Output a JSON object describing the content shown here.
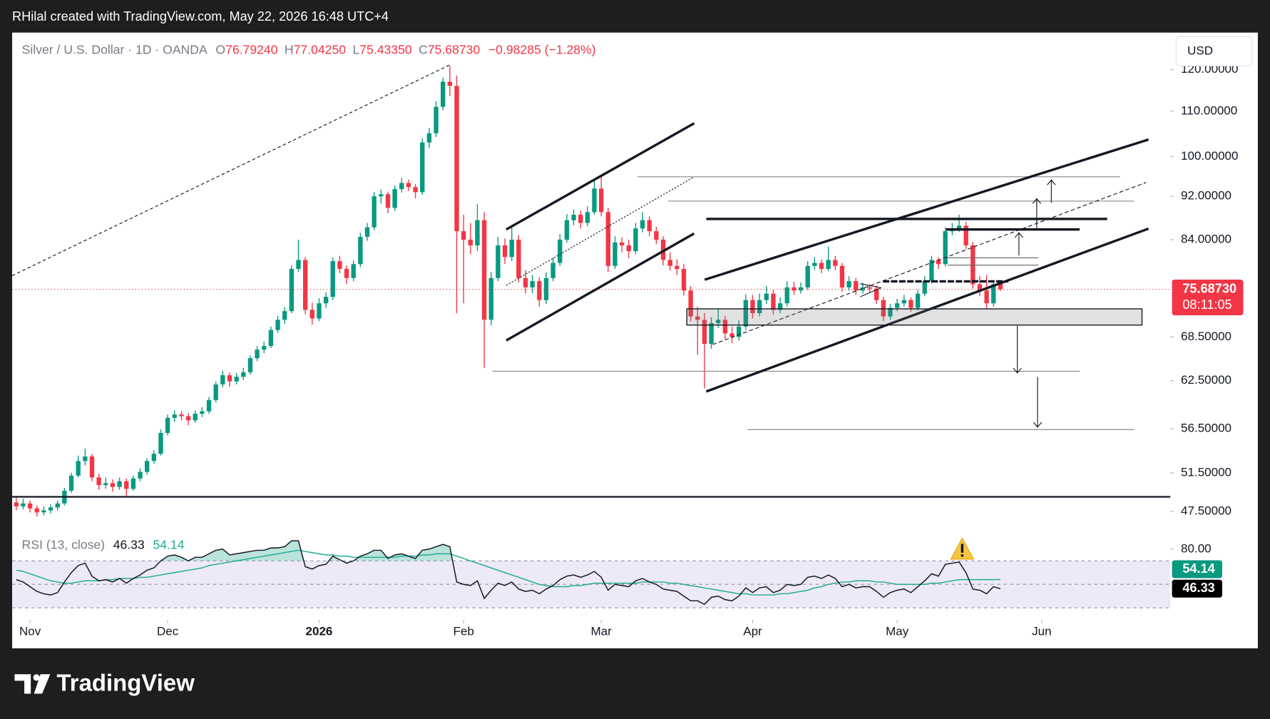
{
  "header": {
    "credit": "RHilal created with TradingView.com, May 22, 2026 16:48 UTC+4"
  },
  "footer": {
    "brand": "TradingView"
  },
  "chart_data": {
    "type": "candlestick",
    "symbol": "Silver / U.S. Dollar · 1D · OANDA",
    "legend": [
      {
        "key": "O",
        "value": "76.79240"
      },
      {
        "key": "H",
        "value": "77.04250"
      },
      {
        "key": "L",
        "value": "75.43350"
      },
      {
        "key": "C",
        "value": "75.68730"
      }
    ],
    "change": "−0.98285 (−1.28%)",
    "currency": "USD",
    "colors": {
      "up": "#089981",
      "down": "#f23645"
    },
    "log_scale": true,
    "ylim": [
      45.6,
      129.7
    ],
    "yticks": [
      {
        "value": 120,
        "label": "120.00000"
      },
      {
        "value": 110,
        "label": "110.00000"
      },
      {
        "value": 100,
        "label": "100.00000"
      },
      {
        "value": 92,
        "label": "92.00000"
      },
      {
        "value": 84,
        "label": "84.00000"
      },
      {
        "value": 68.5,
        "label": "68.50000"
      },
      {
        "value": 62.5,
        "label": "62.50000"
      },
      {
        "value": 56.5,
        "label": "56.50000"
      },
      {
        "value": 51.5,
        "label": "51.50000"
      },
      {
        "value": 47.5,
        "label": "47.50000"
      }
    ],
    "xlim": [
      -0.6,
      167.7
    ],
    "xticks": [
      {
        "value": 2,
        "label": "Nov"
      },
      {
        "value": 22,
        "label": "Dec"
      },
      {
        "value": 44,
        "label": "2026"
      },
      {
        "value": 65,
        "label": "Feb"
      },
      {
        "value": 85,
        "label": "Mar"
      },
      {
        "value": 107,
        "label": "Apr"
      },
      {
        "value": 128,
        "label": "May"
      },
      {
        "value": 149,
        "label": "Jun"
      }
    ],
    "last_price": {
      "value": 75.6873,
      "label": "75.68730",
      "countdown": "08:11:05"
    },
    "ohlc": [
      [
        48.4,
        48.9,
        47.6,
        48.0
      ],
      [
        48.0,
        48.8,
        47.7,
        48.3
      ],
      [
        48.3,
        48.6,
        47.4,
        47.8
      ],
      [
        47.8,
        48.1,
        47.0,
        47.4
      ],
      [
        47.4,
        48.0,
        47.1,
        47.6
      ],
      [
        47.6,
        48.2,
        47.3,
        47.9
      ],
      [
        47.9,
        48.6,
        47.6,
        48.3
      ],
      [
        48.3,
        49.9,
        48.1,
        49.6
      ],
      [
        49.6,
        51.5,
        49.4,
        51.2
      ],
      [
        51.2,
        53.4,
        51.0,
        52.8
      ],
      [
        52.8,
        54.2,
        52.3,
        53.3
      ],
      [
        53.3,
        53.6,
        50.6,
        51.0
      ],
      [
        51.0,
        51.4,
        49.7,
        50.2
      ],
      [
        50.2,
        51.0,
        49.8,
        50.4
      ],
      [
        50.4,
        50.8,
        49.5,
        50.0
      ],
      [
        50.0,
        51.0,
        49.7,
        50.6
      ],
      [
        50.6,
        50.9,
        49.0,
        49.8
      ],
      [
        49.8,
        51.2,
        49.6,
        50.9
      ],
      [
        50.9,
        52.0,
        50.6,
        51.6
      ],
      [
        51.6,
        53.1,
        51.3,
        52.8
      ],
      [
        52.8,
        54.0,
        52.5,
        53.6
      ],
      [
        53.6,
        56.4,
        53.4,
        56.0
      ],
      [
        56.0,
        58.2,
        55.7,
        57.8
      ],
      [
        57.8,
        58.7,
        57.3,
        58.2
      ],
      [
        58.2,
        58.6,
        57.5,
        58.0
      ],
      [
        58.0,
        58.4,
        56.9,
        57.5
      ],
      [
        57.5,
        58.7,
        57.2,
        58.3
      ],
      [
        58.3,
        59.1,
        57.9,
        58.6
      ],
      [
        58.6,
        60.4,
        58.3,
        60.0
      ],
      [
        60.0,
        62.4,
        59.7,
        62.0
      ],
      [
        62.0,
        63.8,
        61.6,
        63.2
      ],
      [
        63.2,
        63.6,
        61.7,
        62.4
      ],
      [
        62.4,
        63.5,
        62.0,
        63.0
      ],
      [
        63.0,
        64.2,
        62.6,
        63.6
      ],
      [
        63.6,
        65.9,
        63.3,
        65.5
      ],
      [
        65.5,
        67.2,
        65.1,
        66.7
      ],
      [
        66.7,
        67.8,
        66.2,
        67.2
      ],
      [
        67.2,
        70.0,
        66.9,
        69.5
      ],
      [
        69.5,
        71.6,
        69.1,
        71.0
      ],
      [
        71.0,
        72.9,
        70.4,
        72.3
      ],
      [
        72.3,
        79.6,
        72.0,
        79.0
      ],
      [
        79.0,
        84.0,
        78.5,
        80.5
      ],
      [
        80.5,
        81.0,
        71.8,
        72.5
      ],
      [
        72.5,
        73.6,
        70.3,
        71.2
      ],
      [
        71.2,
        74.3,
        70.8,
        73.5
      ],
      [
        73.5,
        75.2,
        72.8,
        74.5
      ],
      [
        74.5,
        80.9,
        74.0,
        80.3
      ],
      [
        80.3,
        81.2,
        78.3,
        79.0
      ],
      [
        79.0,
        79.6,
        76.5,
        77.5
      ],
      [
        77.5,
        80.4,
        77.0,
        79.8
      ],
      [
        79.8,
        85.2,
        79.3,
        84.5
      ],
      [
        84.5,
        87.0,
        83.8,
        86.2
      ],
      [
        86.2,
        92.8,
        85.7,
        92.0
      ],
      [
        92.0,
        93.3,
        90.6,
        92.4
      ],
      [
        92.4,
        92.9,
        88.8,
        89.8
      ],
      [
        89.8,
        94.1,
        89.2,
        93.4
      ],
      [
        93.4,
        95.6,
        92.7,
        94.6
      ],
      [
        94.6,
        95.3,
        93.0,
        93.8
      ],
      [
        93.8,
        94.4,
        91.6,
        92.8
      ],
      [
        92.8,
        103.9,
        92.3,
        103.0
      ],
      [
        103.0,
        106.2,
        101.8,
        105.0
      ],
      [
        105.0,
        112.3,
        104.2,
        111.0
      ],
      [
        111.0,
        118.0,
        110.2,
        117.0
      ],
      [
        117.0,
        121.0,
        113.5,
        116.0
      ],
      [
        116.0,
        118.5,
        72.0,
        85.5
      ],
      [
        85.5,
        88.5,
        73.5,
        84.0
      ],
      [
        84.0,
        87.0,
        81.5,
        83.0
      ],
      [
        83.0,
        90.5,
        82.0,
        87.5
      ],
      [
        87.5,
        89.0,
        64.2,
        71.0
      ],
      [
        71.0,
        78.5,
        70.2,
        77.5
      ],
      [
        77.5,
        84.5,
        77.0,
        83.0
      ],
      [
        83.0,
        84.2,
        79.8,
        81.0
      ],
      [
        81.0,
        86.2,
        80.3,
        84.0
      ],
      [
        84.0,
        84.8,
        76.8,
        77.5
      ],
      [
        77.5,
        78.8,
        75.0,
        76.0
      ],
      [
        76.0,
        78.0,
        75.1,
        77.0
      ],
      [
        77.0,
        77.6,
        73.0,
        74.0
      ],
      [
        74.0,
        78.4,
        73.4,
        77.5
      ],
      [
        77.5,
        80.9,
        77.0,
        80.0
      ],
      [
        80.0,
        85.0,
        79.5,
        84.0
      ],
      [
        84.0,
        88.6,
        83.5,
        87.5
      ],
      [
        87.5,
        89.5,
        86.6,
        88.5
      ],
      [
        88.5,
        89.3,
        86.0,
        87.0
      ],
      [
        87.0,
        90.1,
        86.4,
        89.0
      ],
      [
        89.0,
        95.5,
        88.5,
        93.5
      ],
      [
        93.5,
        95.8,
        88.2,
        89.0
      ],
      [
        89.0,
        89.8,
        78.5,
        79.5
      ],
      [
        79.5,
        84.6,
        79.0,
        83.5
      ],
      [
        83.5,
        84.4,
        81.8,
        83.0
      ],
      [
        83.0,
        84.0,
        80.8,
        82.0
      ],
      [
        82.0,
        87.0,
        81.5,
        86.0
      ],
      [
        86.0,
        89.0,
        85.3,
        87.5
      ],
      [
        87.5,
        88.2,
        84.6,
        85.5
      ],
      [
        85.5,
        86.3,
        83.2,
        84.0
      ],
      [
        84.0,
        84.6,
        79.6,
        80.5
      ],
      [
        80.5,
        81.8,
        78.7,
        79.5
      ],
      [
        79.5,
        80.6,
        78.0,
        79.0
      ],
      [
        79.0,
        79.8,
        74.7,
        75.5
      ],
      [
        75.5,
        76.2,
        70.8,
        71.5
      ],
      [
        71.5,
        73.0,
        66.0,
        71.0
      ],
      [
        71.0,
        72.0,
        61.5,
        67.5
      ],
      [
        67.5,
        71.4,
        66.8,
        70.5
      ],
      [
        70.5,
        72.6,
        69.8,
        71.0
      ],
      [
        71.0,
        71.6,
        68.2,
        69.0
      ],
      [
        69.0,
        70.0,
        67.6,
        68.5
      ],
      [
        68.5,
        70.9,
        68.0,
        70.0
      ],
      [
        70.0,
        74.9,
        69.5,
        74.0
      ],
      [
        74.0,
        74.8,
        71.2,
        72.0
      ],
      [
        72.0,
        75.0,
        71.5,
        74.0
      ],
      [
        74.0,
        76.2,
        73.4,
        75.0
      ],
      [
        75.0,
        75.6,
        71.8,
        72.5
      ],
      [
        72.5,
        74.4,
        72.0,
        73.5
      ],
      [
        73.5,
        77.0,
        73.0,
        76.0
      ],
      [
        76.0,
        76.9,
        74.8,
        75.5
      ],
      [
        75.5,
        76.8,
        75.0,
        76.0
      ],
      [
        76.0,
        80.3,
        75.6,
        79.5
      ],
      [
        79.5,
        81.0,
        78.8,
        80.0
      ],
      [
        80.0,
        80.6,
        78.3,
        79.0
      ],
      [
        79.0,
        82.8,
        78.6,
        80.5
      ],
      [
        80.5,
        81.2,
        78.8,
        79.5
      ],
      [
        79.5,
        80.0,
        75.3,
        76.0
      ],
      [
        76.0,
        77.8,
        75.5,
        77.0
      ],
      [
        77.0,
        77.5,
        74.8,
        75.5
      ],
      [
        75.5,
        76.8,
        75.0,
        76.0
      ],
      [
        76.0,
        76.5,
        75.2,
        75.8
      ],
      [
        75.8,
        76.3,
        73.4,
        74.0
      ],
      [
        74.0,
        74.5,
        70.8,
        71.5
      ],
      [
        71.5,
        73.4,
        71.0,
        72.8
      ],
      [
        72.8,
        74.2,
        72.3,
        73.5
      ],
      [
        73.5,
        74.8,
        73.0,
        74.0
      ],
      [
        74.0,
        74.4,
        72.2,
        72.8
      ],
      [
        72.8,
        75.6,
        72.4,
        75.0
      ],
      [
        75.0,
        77.8,
        74.6,
        77.0
      ],
      [
        77.0,
        81.2,
        76.6,
        80.5
      ],
      [
        80.5,
        81.0,
        79.0,
        79.8
      ],
      [
        79.8,
        86.2,
        79.4,
        85.5
      ],
      [
        85.5,
        87.0,
        84.8,
        86.0
      ],
      [
        86.0,
        88.5,
        85.4,
        86.5
      ],
      [
        86.5,
        87.2,
        82.4,
        83.0
      ],
      [
        83.0,
        83.6,
        75.8,
        76.5
      ],
      [
        76.5,
        77.8,
        74.6,
        75.5
      ],
      [
        75.5,
        78.0,
        72.6,
        73.5
      ],
      [
        73.5,
        77.0,
        73.0,
        76.5
      ],
      [
        76.7924,
        77.0425,
        75.4335,
        75.6873
      ]
    ],
    "rsi": {
      "title": "RSI (13, close)",
      "color": "#131722",
      "ma_color": "#22ab94",
      "ylim": [
        19.7,
        95.5
      ],
      "yticks": [
        {
          "value": 80,
          "label": "80.00"
        }
      ],
      "levels": [
        70,
        50,
        30
      ],
      "values": [
        54,
        52,
        48,
        44,
        42,
        41,
        43,
        52,
        60,
        66,
        68,
        57,
        53,
        54,
        52,
        55,
        51,
        55,
        58,
        62,
        64,
        70,
        74,
        75,
        73,
        70,
        73,
        73,
        76,
        79,
        80,
        75,
        76,
        77,
        78,
        79,
        79,
        81,
        81,
        82,
        87,
        87,
        65,
        63,
        66,
        67,
        74,
        71,
        68,
        70,
        74,
        76,
        79,
        79,
        72,
        75,
        76,
        74,
        72,
        79,
        80,
        82,
        84,
        82,
        52,
        50,
        49,
        53,
        38,
        45,
        51,
        49,
        52,
        46,
        44,
        45,
        42,
        46,
        49,
        54,
        57,
        58,
        56,
        58,
        61,
        56,
        45,
        50,
        49,
        48,
        53,
        55,
        52,
        50,
        46,
        45,
        44,
        40,
        36,
        36,
        33,
        39,
        40,
        37,
        36,
        40,
        47,
        43,
        47,
        48,
        43,
        45,
        50,
        49,
        50,
        56,
        57,
        55,
        58,
        55,
        48,
        50,
        47,
        48,
        48,
        44,
        39,
        43,
        45,
        46,
        43,
        48,
        53,
        59,
        57,
        67,
        68,
        69,
        60,
        46,
        45,
        42,
        48,
        46.33
      ],
      "ma_values": [
        62,
        61,
        59,
        57,
        55,
        53,
        52,
        51,
        51,
        52,
        53,
        53,
        53,
        54,
        54,
        55,
        55,
        55,
        56,
        56,
        57,
        58,
        59,
        60,
        61,
        62,
        63,
        64,
        66,
        67,
        68,
        69,
        70,
        71,
        72,
        73,
        74,
        75,
        76,
        77,
        78,
        79,
        78,
        77,
        76,
        75,
        75,
        74,
        74,
        73,
        73,
        73,
        73,
        73,
        73,
        73,
        74,
        74,
        74,
        75,
        75,
        76,
        76,
        76,
        74,
        72,
        70,
        68,
        66,
        64,
        62,
        60,
        58,
        56,
        54,
        52,
        50,
        49,
        48,
        48,
        48,
        49,
        49,
        50,
        51,
        51,
        51,
        51,
        51,
        51,
        51,
        52,
        52,
        52,
        52,
        51,
        51,
        50,
        49,
        48,
        47,
        46,
        45,
        44,
        43,
        42,
        42,
        41,
        41,
        41,
        41,
        42,
        42,
        43,
        44,
        45,
        47,
        48,
        50,
        51,
        52,
        52,
        53,
        53,
        53,
        52,
        52,
        51,
        50,
        50,
        50,
        50,
        50,
        51,
        51,
        52,
        53,
        54,
        54,
        54,
        54,
        54,
        54,
        54.14
      ]
    }
  }
}
